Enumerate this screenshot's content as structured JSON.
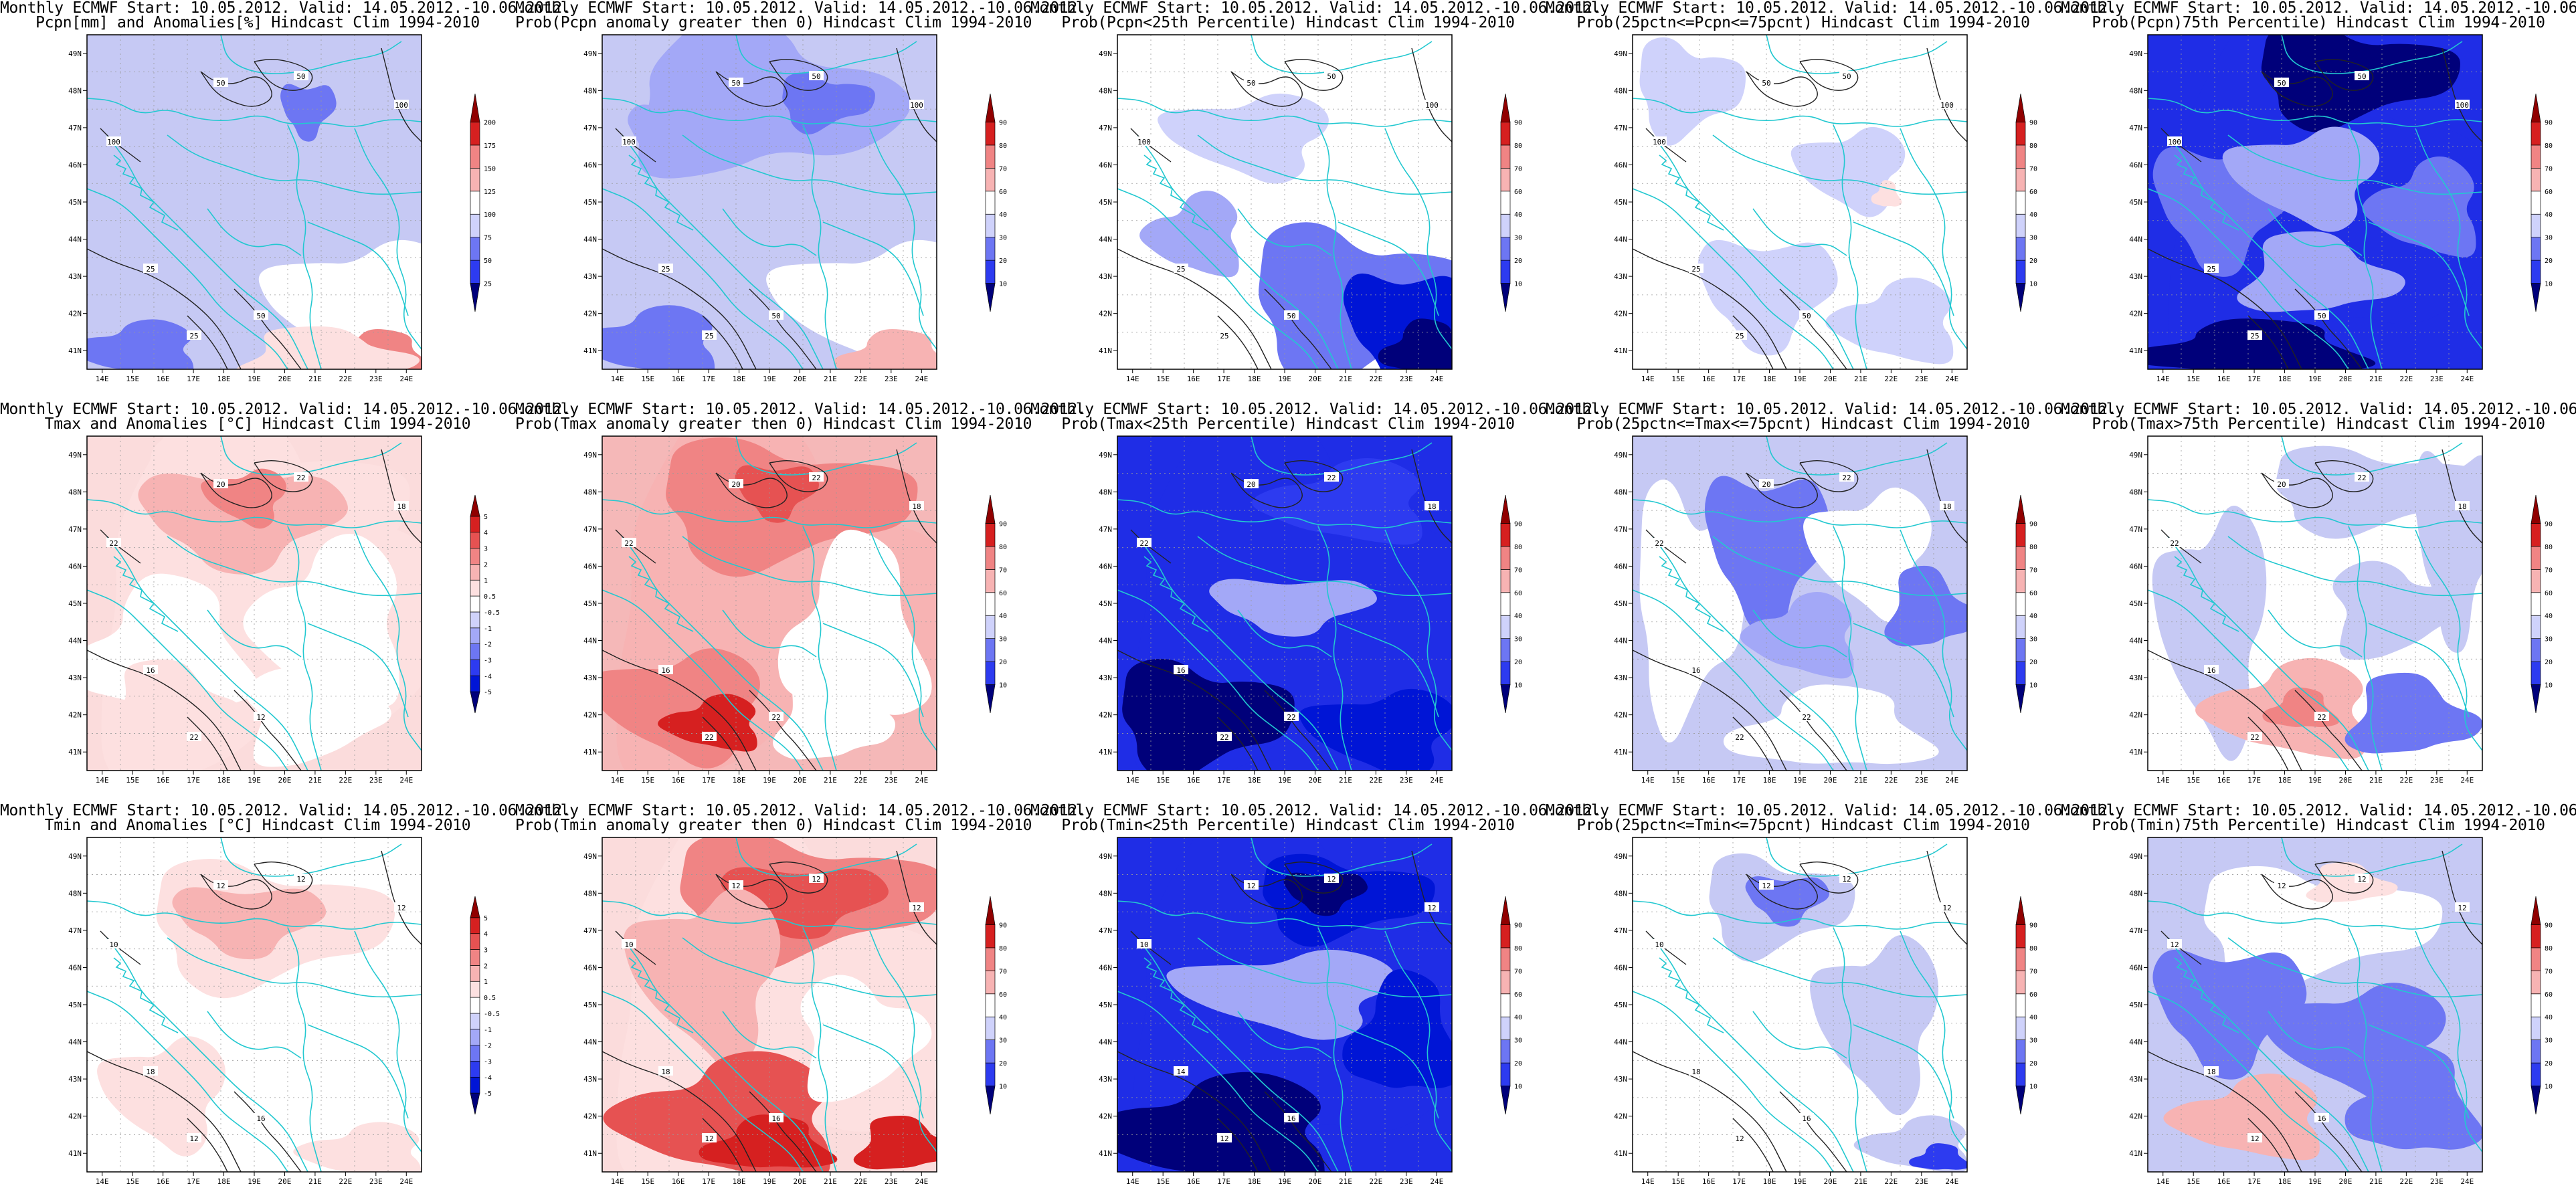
{
  "common": {
    "title_line1": "Monthly ECMWF Start: 10.05.2012. Valid: 14.05.2012.-10.06.2012.",
    "lat_labels": [
      "49N",
      "48N",
      "47N",
      "46N",
      "45N",
      "44N",
      "43N",
      "42N",
      "41N"
    ],
    "lon_labels": [
      "14E",
      "15E",
      "16E",
      "17E",
      "18E",
      "19E",
      "20E",
      "21E",
      "22E",
      "23E",
      "24E"
    ],
    "prob_ticks": [
      "10",
      "20",
      "30",
      "40",
      "60",
      "70",
      "80",
      "90"
    ]
  },
  "panels": [
    {
      "line2": "Pcpn[mm] and Anomalies[%] Hindcast Clim 1994-2010",
      "cb_ticks": [
        "25",
        "50",
        "75",
        "100",
        "125",
        "150",
        "175",
        "200"
      ],
      "base": "#c6c9f4",
      "contours": [
        "50",
        "50",
        "100",
        "100",
        "25",
        "50",
        "25"
      ]
    },
    {
      "line2": "Prob(Pcpn anomaly greater then 0) Hindcast Clim 1994-2010",
      "cb_ticks": [
        "10",
        "20",
        "30",
        "40",
        "60",
        "70",
        "80",
        "90"
      ],
      "base": "#c6c9f4",
      "contours": [
        "50",
        "50",
        "100",
        "100",
        "25",
        "50",
        "25"
      ]
    },
    {
      "line2": "Prob(Pcpn<25th Percentile) Hindcast Clim 1994-2010",
      "cb_ticks": [
        "10",
        "20",
        "30",
        "40",
        "60",
        "70",
        "80",
        "90"
      ],
      "base": "#ffffff",
      "contours": [
        "50",
        "50",
        "100",
        "100",
        "25",
        "50",
        "25"
      ]
    },
    {
      "line2": "Prob(25pctn<=Pcpn<=75pcnt) Hindcast Clim 1994-2010",
      "cb_ticks": [
        "10",
        "20",
        "30",
        "40",
        "60",
        "70",
        "80",
        "90"
      ],
      "base": "#ffffff",
      "contours": [
        "50",
        "50",
        "100",
        "100",
        "25",
        "50",
        "25"
      ]
    },
    {
      "line2": "Prob(Pcpn)75th Percentile) Hindcast Clim 1994-2010",
      "cb_ticks": [
        "10",
        "20",
        "30",
        "40",
        "60",
        "70",
        "80",
        "90"
      ],
      "base": "#1f2de6",
      "contours": [
        "50",
        "50",
        "100",
        "100",
        "25",
        "50",
        "25"
      ]
    },
    {
      "line2": "Tmax and Anomalies [°C] Hindcast Clim 1994-2010",
      "cb_ticks": [
        "-5",
        "-4",
        "-3",
        "-2",
        "-1",
        "-0.5",
        "0.5",
        "1",
        "2",
        "3",
        "4",
        "5"
      ],
      "base": "#fbdcdc",
      "contours": [
        "20",
        "22",
        "18",
        "22",
        "16",
        "12",
        "22"
      ]
    },
    {
      "line2": "Prob(Tmax anomaly greater then 0) Hindcast Clim 1994-2010",
      "cb_ticks": [
        "10",
        "20",
        "30",
        "40",
        "60",
        "70",
        "80",
        "90"
      ],
      "base": "#f5b8b8",
      "contours": [
        "20",
        "22",
        "18",
        "22",
        "16",
        "22",
        "22"
      ]
    },
    {
      "line2": "Prob(Tmax<25th Percentile) Hindcast Clim 1994-2010",
      "cb_ticks": [
        "10",
        "20",
        "30",
        "40",
        "60",
        "70",
        "80",
        "90"
      ],
      "base": "#1f2de6",
      "contours": [
        "20",
        "22",
        "18",
        "22",
        "16",
        "22",
        "22"
      ]
    },
    {
      "line2": "Prob(25pctn<=Tmax<=75pcnt) Hindcast Clim 1994-2010",
      "cb_ticks": [
        "10",
        "20",
        "30",
        "40",
        "60",
        "70",
        "80",
        "90"
      ],
      "base": "#c6c9f4",
      "contours": [
        "20",
        "22",
        "18",
        "22",
        "16",
        "22",
        "22"
      ]
    },
    {
      "line2": "Prob(Tmax>75th Percentile) Hindcast Clim 1994-2010",
      "cb_ticks": [
        "10",
        "20",
        "30",
        "40",
        "60",
        "70",
        "80",
        "90"
      ],
      "base": "#ffffff",
      "contours": [
        "20",
        "22",
        "18",
        "22",
        "16",
        "22",
        "22"
      ]
    },
    {
      "line2": "Tmin and Anomalies [°C] Hindcast Clim 1994-2010",
      "cb_ticks": [
        "-5",
        "-4",
        "-3",
        "-2",
        "-1",
        "-0.5",
        "0.5",
        "1",
        "2",
        "3",
        "4",
        "5"
      ],
      "base": "#ffffff",
      "contours": [
        "12",
        "12",
        "12",
        "10",
        "18",
        "16",
        "12"
      ]
    },
    {
      "line2": "Prob(Tmin anomaly greater then 0) Hindcast Clim 1994-2010",
      "cb_ticks": [
        "10",
        "20",
        "30",
        "40",
        "60",
        "70",
        "80",
        "90"
      ],
      "base": "#fbdcdc",
      "contours": [
        "12",
        "12",
        "12",
        "10",
        "18",
        "16",
        "12"
      ]
    },
    {
      "line2": "Prob(Tmin<25th Percentile) Hindcast Clim 1994-2010",
      "cb_ticks": [
        "10",
        "20",
        "30",
        "40",
        "60",
        "70",
        "80",
        "90"
      ],
      "base": "#1f2de6",
      "contours": [
        "12",
        "12",
        "12",
        "10",
        "14",
        "16",
        "12"
      ]
    },
    {
      "line2": "Prob(25pctn<=Tmin<=75pcnt) Hindcast Clim 1994-2010",
      "cb_ticks": [
        "10",
        "20",
        "30",
        "40",
        "60",
        "70",
        "80",
        "90"
      ],
      "base": "#ffffff",
      "contours": [
        "12",
        "12",
        "12",
        "10",
        "18",
        "16",
        "12"
      ]
    },
    {
      "line2": "Prob(Tmin)75th Percentile) Hindcast Clim 1994-2010",
      "cb_ticks": [
        "10",
        "20",
        "30",
        "40",
        "60",
        "70",
        "80",
        "90"
      ],
      "base": "#c6c9f4",
      "contours": [
        "12",
        "12",
        "12",
        "12",
        "18",
        "16",
        "12"
      ]
    }
  ]
}
